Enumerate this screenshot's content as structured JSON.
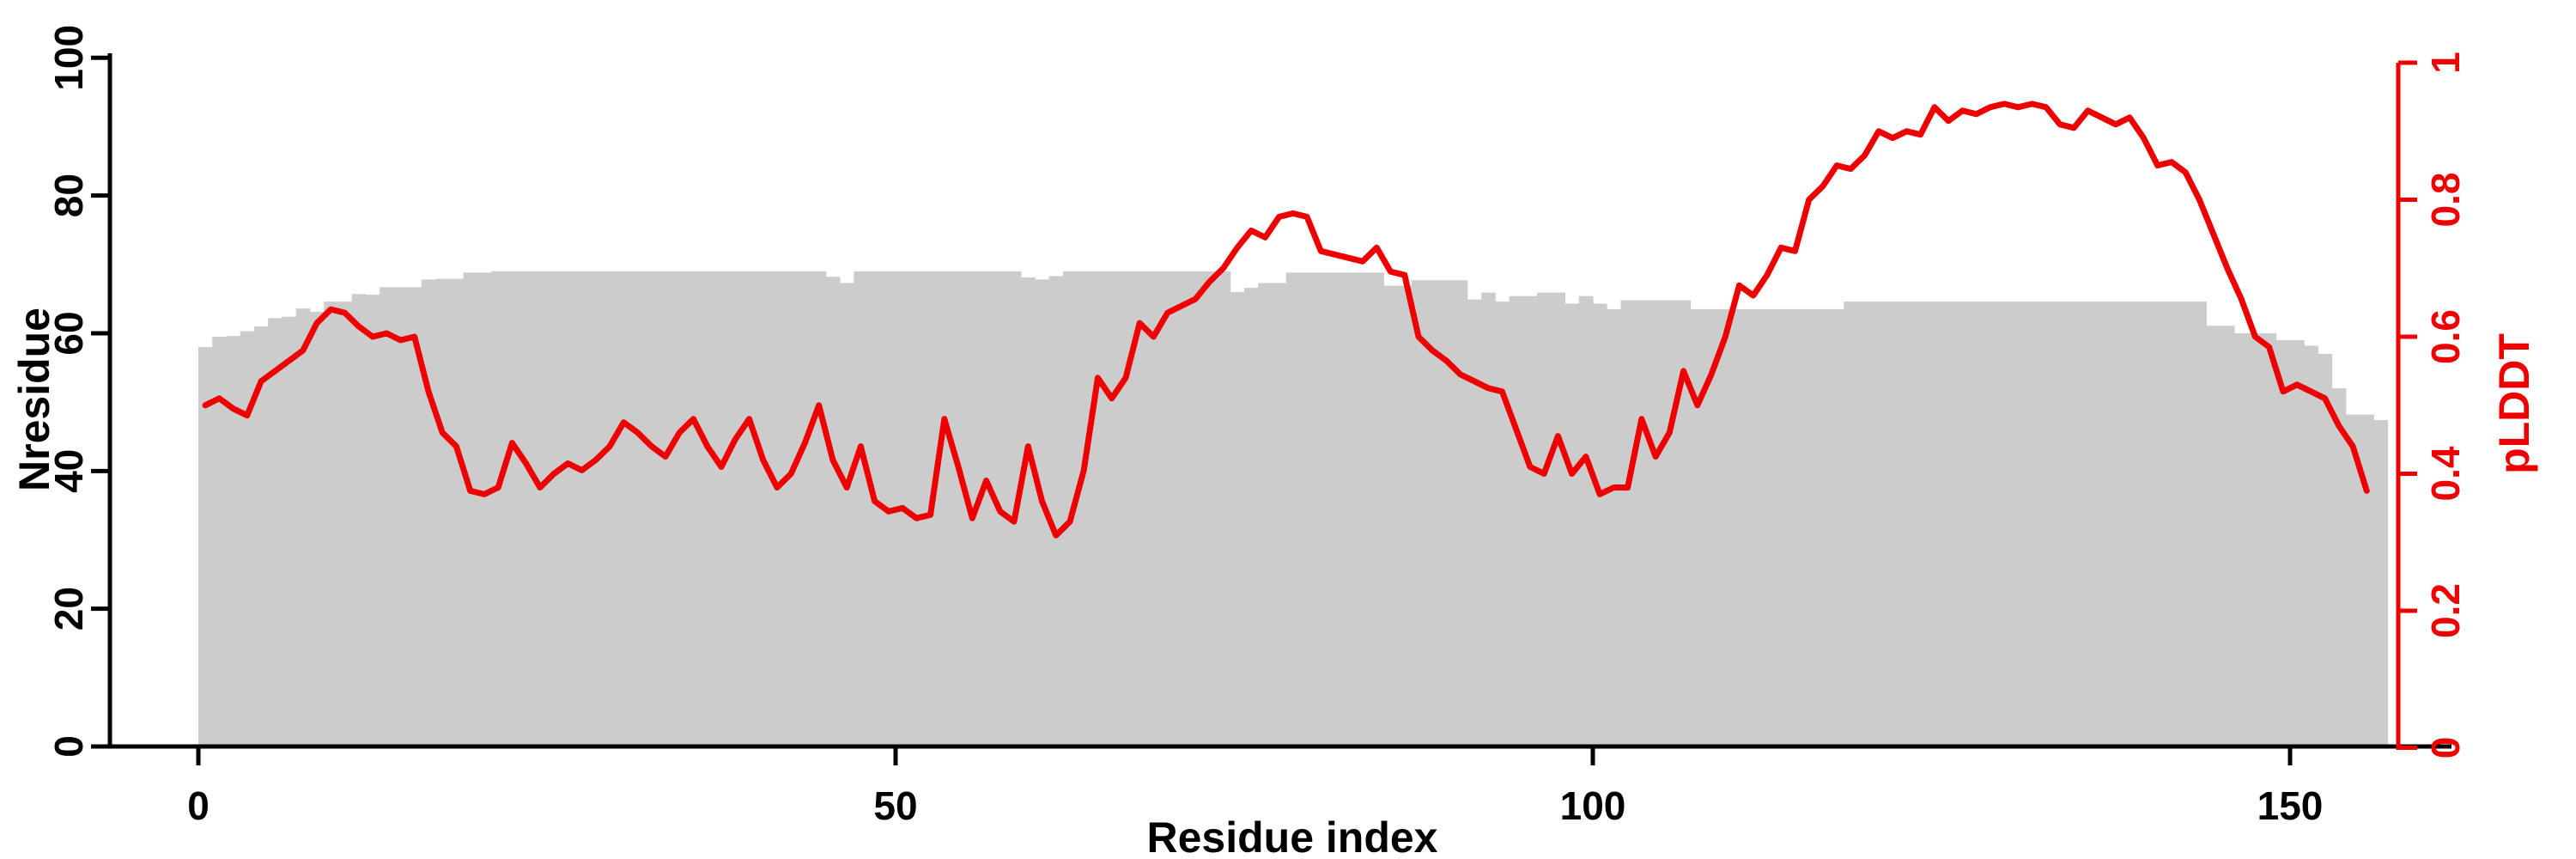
{
  "page": {
    "background_color": "#ffffff",
    "axis_color": "#000000"
  },
  "chart_data": {
    "type": "bar",
    "subtype": "dual-axis bar with overlaid line",
    "title": "",
    "xlabel": "Residue index",
    "ylabel_left": "Nresidue",
    "ylabel_right": "pLDDT",
    "x_tick_values": [
      0,
      50,
      100,
      150
    ],
    "x_tick_labels": [
      "0",
      "50",
      "100",
      "150"
    ],
    "ylim_left": [
      0,
      100
    ],
    "y_tick_values_left": [
      0,
      20,
      40,
      60,
      80,
      100
    ],
    "y_tick_labels_left": [
      "0",
      "20",
      "40",
      "60",
      "80",
      "100"
    ],
    "ylim_right": [
      0,
      1
    ],
    "y_tick_values_right": [
      0,
      0.2,
      0.4,
      0.6,
      0.8,
      1
    ],
    "y_tick_labels_right": [
      "0",
      "0.2",
      "0.4",
      "0.6",
      "0.8",
      "1"
    ],
    "grid": false,
    "legend": "none",
    "bar_color": "#cccccc",
    "line_color": "#ee0000",
    "x_start_index": 0,
    "series": [
      {
        "name": "Nresidue",
        "style": "bars",
        "axis": "left",
        "values": [
          58,
          59.5,
          59.6,
          60.3,
          61,
          62.2,
          62.4,
          63.6,
          63.1,
          64.6,
          64.6,
          65.7,
          65.6,
          66.7,
          66.7,
          66.7,
          67.8,
          67.9,
          67.9,
          68.8,
          68.8,
          69,
          69,
          69,
          69,
          69,
          69,
          69,
          69,
          69,
          69,
          69,
          69,
          69,
          69,
          69,
          69,
          69,
          69,
          69,
          69,
          69,
          69,
          69,
          69,
          68.2,
          67.3,
          69,
          69,
          69,
          69,
          69,
          69,
          69,
          69,
          69,
          69,
          69,
          69,
          68.1,
          67.8,
          68.3,
          69,
          69,
          69,
          69,
          69,
          69,
          69,
          69,
          69,
          69,
          69,
          69,
          66,
          66.6,
          67.3,
          67.3,
          68.8,
          68.8,
          68.8,
          68.8,
          68.8,
          68.8,
          68.8,
          66.9,
          66.9,
          67.7,
          67.7,
          67.7,
          67.7,
          64.9,
          65.9,
          64.6,
          65.4,
          65.4,
          65.9,
          65.9,
          64.3,
          65.4,
          64.3,
          63.5,
          64.8,
          64.8,
          64.8,
          64.8,
          64.8,
          63.5,
          63.5,
          63.5,
          63.5,
          63.5,
          63.5,
          63.5,
          63.5,
          63.5,
          63.5,
          63.5,
          64.6,
          64.6,
          64.6,
          64.6,
          64.6,
          64.6,
          64.6,
          64.6,
          64.6,
          64.6,
          64.6,
          64.6,
          64.6,
          64.6,
          64.6,
          64.6,
          64.6,
          64.6,
          64.6,
          64.6,
          64.6,
          64.6,
          64.6,
          64.6,
          64.6,
          64.6,
          61.1,
          61.1,
          60,
          60,
          60,
          59,
          59,
          58.2,
          57,
          52,
          48.2,
          48.2,
          47.4
        ]
      },
      {
        "name": "pLDDT",
        "style": "line",
        "axis": "right",
        "values": [
          0.5,
          0.51,
          0.495,
          0.485,
          0.535,
          0.55,
          0.565,
          0.58,
          0.62,
          0.64,
          0.635,
          0.615,
          0.6,
          0.605,
          0.595,
          0.6,
          0.52,
          0.46,
          0.44,
          0.375,
          0.37,
          0.38,
          0.445,
          0.415,
          0.38,
          0.4,
          0.415,
          0.405,
          0.42,
          0.44,
          0.475,
          0.46,
          0.44,
          0.425,
          0.46,
          0.48,
          0.44,
          0.41,
          0.45,
          0.48,
          0.42,
          0.38,
          0.4,
          0.445,
          0.5,
          0.42,
          0.38,
          0.44,
          0.36,
          0.345,
          0.35,
          0.335,
          0.34,
          0.48,
          0.41,
          0.335,
          0.39,
          0.345,
          0.33,
          0.44,
          0.36,
          0.31,
          0.33,
          0.405,
          0.54,
          0.51,
          0.54,
          0.62,
          0.6,
          0.635,
          0.645,
          0.655,
          0.68,
          0.7,
          0.73,
          0.755,
          0.745,
          0.775,
          0.78,
          0.775,
          0.725,
          0.72,
          0.715,
          0.71,
          0.73,
          0.695,
          0.69,
          0.6,
          0.58,
          0.565,
          0.545,
          0.535,
          0.525,
          0.52,
          0.465,
          0.41,
          0.4,
          0.455,
          0.4,
          0.425,
          0.37,
          0.38,
          0.38,
          0.48,
          0.425,
          0.46,
          0.55,
          0.5,
          0.545,
          0.6,
          0.675,
          0.66,
          0.69,
          0.73,
          0.725,
          0.8,
          0.82,
          0.85,
          0.845,
          0.865,
          0.9,
          0.89,
          0.9,
          0.895,
          0.935,
          0.915,
          0.93,
          0.925,
          0.935,
          0.94,
          0.935,
          0.94,
          0.935,
          0.91,
          0.905,
          0.93,
          0.92,
          0.91,
          0.92,
          0.89,
          0.85,
          0.855,
          0.84,
          0.8,
          0.75,
          0.7,
          0.655,
          0.6,
          0.585,
          0.52,
          0.53,
          0.52,
          0.51,
          0.47,
          0.44,
          0.375
        ]
      }
    ]
  }
}
